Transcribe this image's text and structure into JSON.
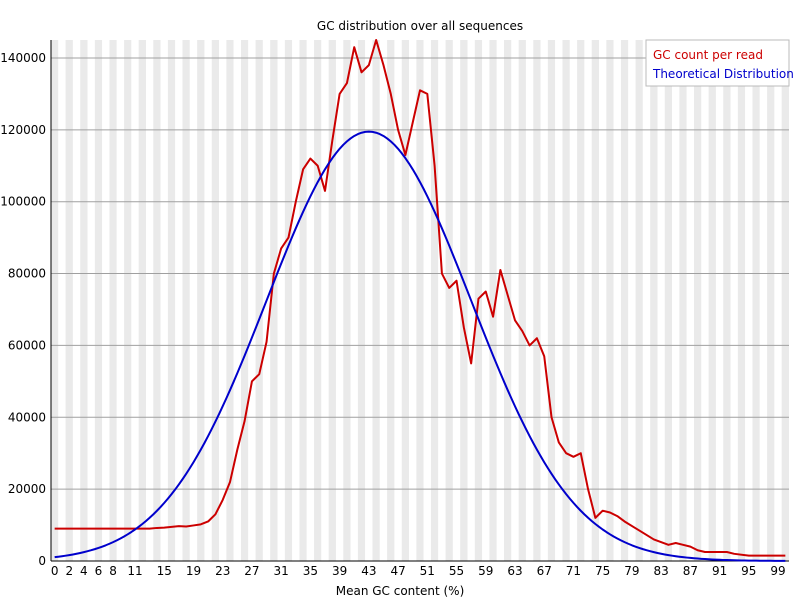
{
  "chart_data": {
    "type": "line",
    "title": "GC distribution over all sequences",
    "xlabel": "Mean GC content (%)",
    "ylabel": "",
    "xlim": [
      0,
      101
    ],
    "ylim": [
      0,
      145000
    ],
    "x_tick_labels": [
      "0",
      "2",
      "4",
      "6",
      "8",
      "11",
      "15",
      "19",
      "23",
      "27",
      "31",
      "35",
      "39",
      "43",
      "47",
      "51",
      "55",
      "59",
      "63",
      "67",
      "71",
      "75",
      "79",
      "83",
      "87",
      "91",
      "95",
      "99"
    ],
    "y_tick_labels": [
      "0",
      "20000",
      "40000",
      "60000",
      "80000",
      "100000",
      "120000",
      "140000"
    ],
    "y_ticks": [
      0,
      20000,
      40000,
      60000,
      80000,
      100000,
      120000,
      140000
    ],
    "grid": true,
    "legend_position": "top-right",
    "series": [
      {
        "name": "GC count per read",
        "color": "#cc0000",
        "points": [
          [
            0,
            9000
          ],
          [
            2,
            9000
          ],
          [
            4,
            9000
          ],
          [
            6,
            9000
          ],
          [
            8,
            9000
          ],
          [
            10,
            9000
          ],
          [
            12,
            9000
          ],
          [
            13,
            9000
          ],
          [
            14,
            9200
          ],
          [
            15,
            9300
          ],
          [
            16,
            9500
          ],
          [
            17,
            9700
          ],
          [
            18,
            9600
          ],
          [
            19,
            9900
          ],
          [
            20,
            10200
          ],
          [
            21,
            11000
          ],
          [
            22,
            13000
          ],
          [
            23,
            17000
          ],
          [
            24,
            22000
          ],
          [
            25,
            31000
          ],
          [
            26,
            39000
          ],
          [
            27,
            50000
          ],
          [
            28,
            52000
          ],
          [
            29,
            61000
          ],
          [
            30,
            80000
          ],
          [
            31,
            87000
          ],
          [
            32,
            90000
          ],
          [
            33,
            100000
          ],
          [
            34,
            109000
          ],
          [
            35,
            112000
          ],
          [
            36,
            110000
          ],
          [
            37,
            103000
          ],
          [
            38,
            117000
          ],
          [
            39,
            130000
          ],
          [
            40,
            133000
          ],
          [
            41,
            143000
          ],
          [
            42,
            136000
          ],
          [
            43,
            138000
          ],
          [
            44,
            145000
          ],
          [
            45,
            138000
          ],
          [
            46,
            130000
          ],
          [
            47,
            120000
          ],
          [
            48,
            113000
          ],
          [
            49,
            122000
          ],
          [
            50,
            131000
          ],
          [
            51,
            130000
          ],
          [
            52,
            110000
          ],
          [
            53,
            80000
          ],
          [
            54,
            76000
          ],
          [
            55,
            78000
          ],
          [
            56,
            65000
          ],
          [
            57,
            55000
          ],
          [
            58,
            73000
          ],
          [
            59,
            75000
          ],
          [
            60,
            68000
          ],
          [
            61,
            81000
          ],
          [
            62,
            74000
          ],
          [
            63,
            67000
          ],
          [
            64,
            64000
          ],
          [
            65,
            60000
          ],
          [
            66,
            62000
          ],
          [
            67,
            57000
          ],
          [
            68,
            40000
          ],
          [
            69,
            33000
          ],
          [
            70,
            30000
          ],
          [
            71,
            29000
          ],
          [
            72,
            30000
          ],
          [
            73,
            20000
          ],
          [
            74,
            12000
          ],
          [
            75,
            14000
          ],
          [
            76,
            13500
          ],
          [
            77,
            12500
          ],
          [
            78,
            11000
          ],
          [
            80,
            8500
          ],
          [
            82,
            6000
          ],
          [
            84,
            4500
          ],
          [
            85,
            5000
          ],
          [
            86,
            4500
          ],
          [
            87,
            4000
          ],
          [
            88,
            3000
          ],
          [
            89,
            2500
          ],
          [
            92,
            2500
          ],
          [
            93,
            2000
          ],
          [
            95,
            1500
          ],
          [
            100,
            1500
          ]
        ]
      },
      {
        "name": "Theoretical Distribution",
        "color": "#0000cc",
        "model": {
          "mean": 43,
          "sd": 14,
          "peak": 119500,
          "x_max": 100
        }
      }
    ]
  }
}
